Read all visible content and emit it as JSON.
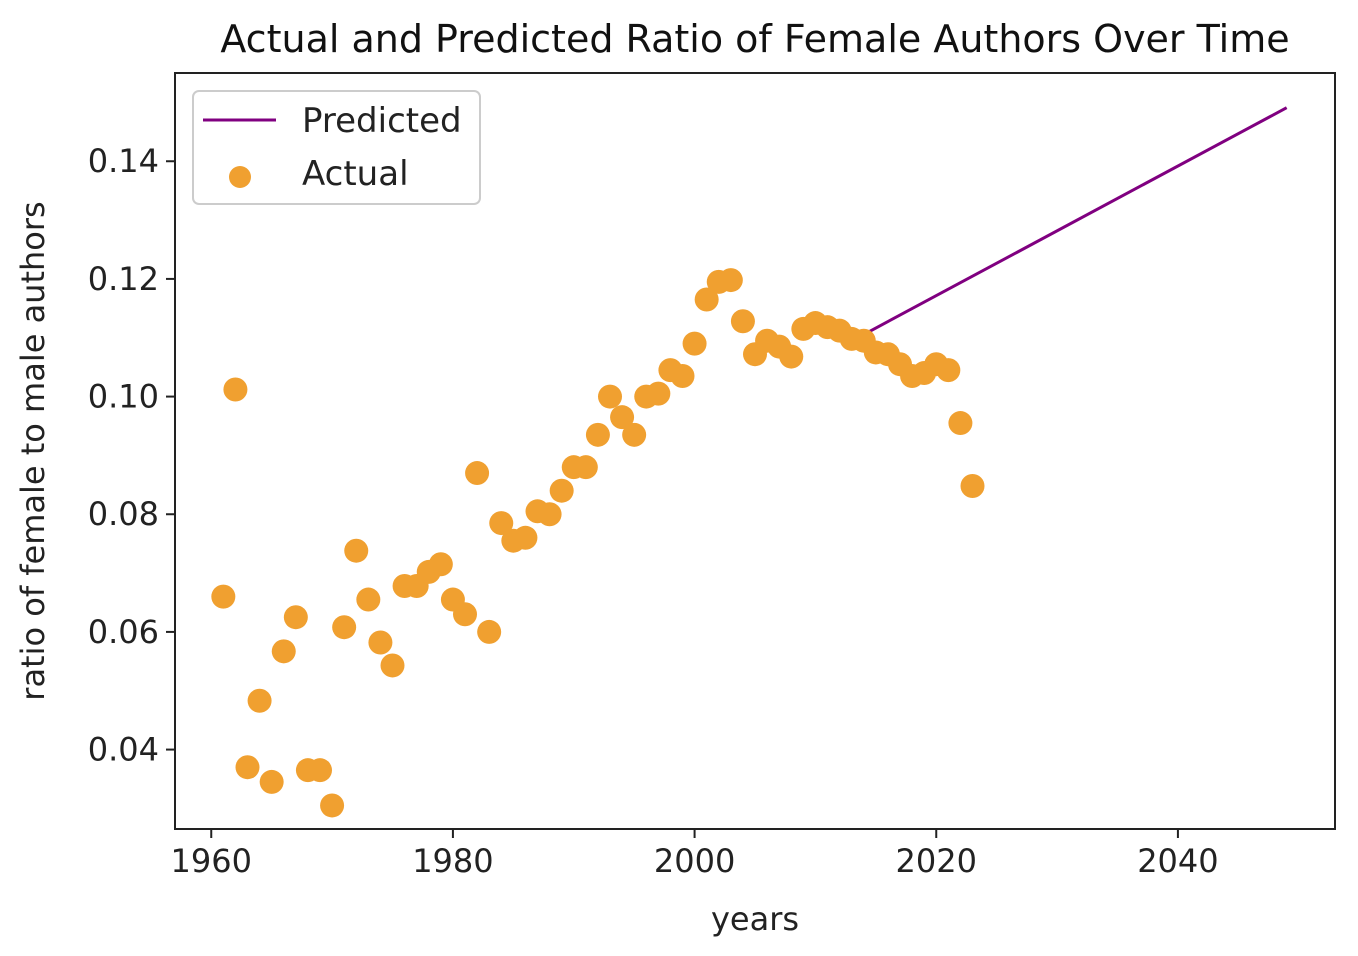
{
  "chart_data": {
    "type": "scatter",
    "title": "Actual and Predicted Ratio of Female Authors Over Time",
    "xlabel": "years",
    "ylabel": "ratio of female to male authors",
    "xlim": [
      1957,
      2053
    ],
    "ylim": [
      0.0265,
      0.155
    ],
    "xticks": [
      1960,
      1980,
      2000,
      2020,
      2040
    ],
    "xtick_labels": [
      "1960",
      "1980",
      "2000",
      "2020",
      "2040"
    ],
    "yticks": [
      0.04,
      0.06,
      0.08,
      0.1,
      0.12,
      0.14
    ],
    "ytick_labels": [
      "0.04",
      "0.06",
      "0.08",
      "0.10",
      "0.12",
      "0.14"
    ],
    "grid": false,
    "legend_position": "upper-left",
    "series": [
      {
        "name": "Predicted",
        "kind": "line",
        "color": "#800080",
        "x": [
          2014.5,
          2049
        ],
        "y": [
          0.1111,
          0.1491
        ]
      },
      {
        "name": "Actual",
        "kind": "scatter",
        "color": "#F0A030",
        "x": [
          1961,
          1962,
          1963,
          1964,
          1965,
          1966,
          1967,
          1968,
          1969,
          1970,
          1971,
          1972,
          1973,
          1974,
          1975,
          1976,
          1977,
          1978,
          1979,
          1980,
          1981,
          1982,
          1983,
          1984,
          1985,
          1986,
          1987,
          1988,
          1989,
          1990,
          1991,
          1992,
          1993,
          1994,
          1995,
          1996,
          1997,
          1998,
          1999,
          2000,
          2001,
          2002,
          2003,
          2004,
          2005,
          2006,
          2007,
          2008,
          2009,
          2010,
          2011,
          2012,
          2013,
          2014,
          2015,
          2016,
          2017,
          2018,
          2019,
          2020,
          2021,
          2022,
          2023
        ],
        "y": [
          0.066,
          0.1012,
          0.037,
          0.0483,
          0.0345,
          0.0567,
          0.0625,
          0.0365,
          0.0365,
          0.0305,
          0.0608,
          0.0738,
          0.0655,
          0.0582,
          0.0543,
          0.0678,
          0.0678,
          0.0702,
          0.0715,
          0.0655,
          0.063,
          0.087,
          0.06,
          0.0785,
          0.0755,
          0.076,
          0.0805,
          0.08,
          0.084,
          0.088,
          0.088,
          0.0935,
          0.1,
          0.0965,
          0.0935,
          0.1,
          0.1005,
          0.1045,
          0.1035,
          0.109,
          0.1165,
          0.1195,
          0.1198,
          0.1128,
          0.1072,
          0.1095,
          0.1085,
          0.1068,
          0.1115,
          0.1125,
          0.1118,
          0.1112,
          0.1098,
          0.1095,
          0.1075,
          0.1072,
          0.1055,
          0.1035,
          0.104,
          0.1055,
          0.1045,
          0.0955,
          0.0848
        ]
      }
    ]
  }
}
